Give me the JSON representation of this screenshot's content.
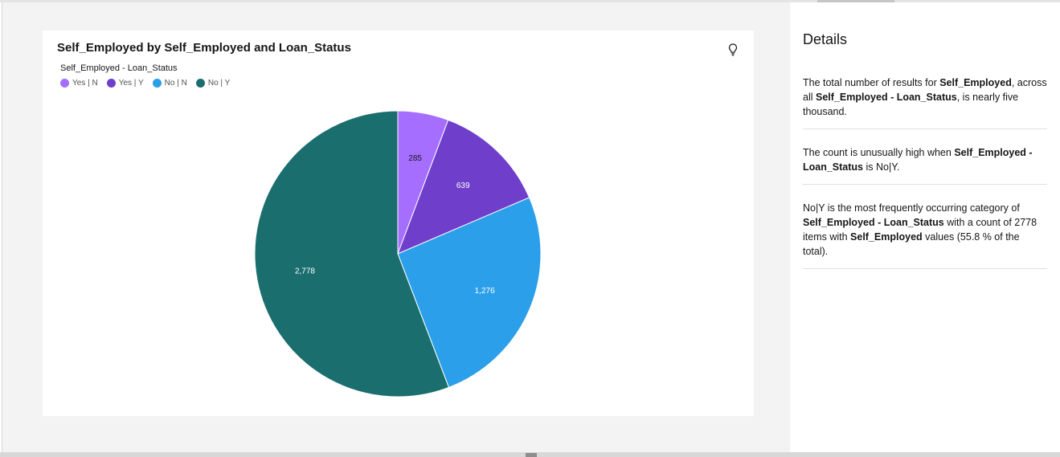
{
  "chart_data": {
    "type": "pie",
    "title": "Self_Employed by Self_Employed and Loan_Status",
    "legend_title": "Self_Employed - Loan_Status",
    "legend_placement": "top-left",
    "categories": [
      "Yes | N",
      "Yes | Y",
      "No | N",
      "No | Y"
    ],
    "values": [
      285,
      639,
      1276,
      2778
    ],
    "value_labels": [
      "285",
      "639",
      "1,276",
      "2,778"
    ],
    "colors": [
      "#a56eff",
      "#6f3fcb",
      "#2b9fe9",
      "#1b6e6e"
    ],
    "label_colors": [
      "#161616",
      "#ffffff",
      "#ffffff",
      "#ffffff"
    ]
  },
  "insights_panel": {
    "title": "Details",
    "insights": [
      {
        "parts": [
          {
            "text": "The total number of results for "
          },
          {
            "text": "Self_Employed",
            "bold": true
          },
          {
            "text": ", across all "
          },
          {
            "text": "Self_Employed - Loan_Status",
            "bold": true
          },
          {
            "text": ", is nearly five thousand."
          }
        ]
      },
      {
        "parts": [
          {
            "text": "The count is unusually high when "
          },
          {
            "text": "Self_Employed - Loan_Status",
            "bold": true
          },
          {
            "text": " is No|Y."
          }
        ]
      },
      {
        "parts": [
          {
            "text": "No|Y is the most frequently occurring category of "
          },
          {
            "text": "Self_Employed - Loan_Status",
            "bold": true
          },
          {
            "text": " with a count of 2778 items with "
          },
          {
            "text": "Self_Employed",
            "bold": true
          },
          {
            "text": " values (55.8 % of the total)."
          }
        ]
      }
    ]
  },
  "icons": {
    "insight": "lightbulb-icon",
    "resize": "drag-handle-icon"
  }
}
